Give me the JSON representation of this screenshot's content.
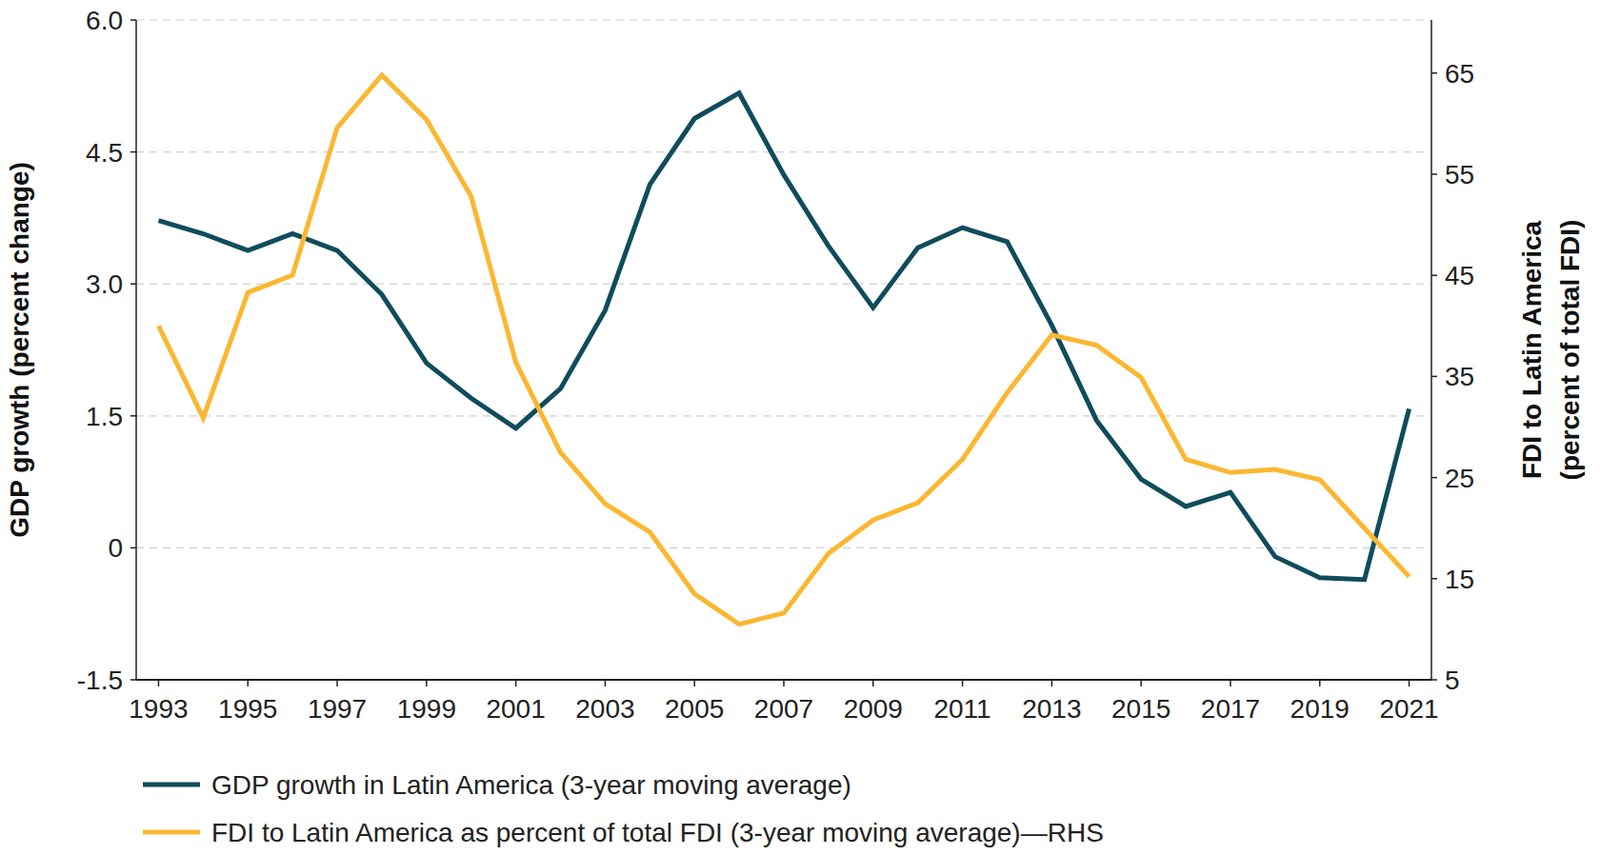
{
  "chart_data": {
    "type": "line",
    "y_label": "GDP growth (percent change)",
    "y2_label": [
      "FDI to Latin America",
      "(percent of total FDI)"
    ],
    "x": [
      1993,
      1994,
      1995,
      1996,
      1997,
      1998,
      1999,
      2000,
      2001,
      2002,
      2003,
      2004,
      2005,
      2006,
      2007,
      2008,
      2009,
      2010,
      2011,
      2012,
      2013,
      2014,
      2015,
      2016,
      2017,
      2018,
      2019,
      2020,
      2021
    ],
    "xlim": [
      1992.5,
      2021.5
    ],
    "xticks": [
      1993,
      1995,
      1997,
      1999,
      2001,
      2003,
      2005,
      2007,
      2009,
      2011,
      2013,
      2015,
      2017,
      2019,
      2021
    ],
    "ylim": [
      -1.5,
      6.0
    ],
    "yticks": [
      -1.5,
      0,
      1.5,
      {
        "value": 3,
        "label": "3.0"
      },
      {
        "value": 4.5,
        "label": "4.5"
      },
      {
        "value": 6,
        "label": "6.0"
      }
    ],
    "y2lim": [
      5,
      70.25
    ],
    "y2ticks": [
      5,
      15,
      25,
      35,
      45,
      55,
      65
    ],
    "grid": true,
    "legend": "bottom",
    "series": [
      {
        "name": "GDP growth in Latin America (3-year moving average)",
        "color": "#0f4c5c",
        "values": [
          3.72,
          3.57,
          3.38,
          3.57,
          3.38,
          2.88,
          2.1,
          1.7,
          1.36,
          1.81,
          2.7,
          4.13,
          4.88,
          5.17,
          4.24,
          3.43,
          2.73,
          3.41,
          3.64,
          3.48,
          2.53,
          1.45,
          0.78,
          0.47,
          0.63,
          -0.1,
          -0.34,
          -0.36,
          1.58
        ]
      },
      {
        "name": "FDI to Latin America as percent of total FDI (3-year moving average)—RHS",
        "color": "#fbb731",
        "axis": "y2",
        "values": [
          40.0,
          30.9,
          43.3,
          45.0,
          59.6,
          64.8,
          60.4,
          52.8,
          36.4,
          27.5,
          22.4,
          19.6,
          13.5,
          10.5,
          11.6,
          17.5,
          20.8,
          22.5,
          26.8,
          33.4,
          39.1,
          38.1,
          34.9,
          26.8,
          25.5,
          25.8,
          24.8,
          20.0,
          15.2
        ]
      }
    ]
  }
}
